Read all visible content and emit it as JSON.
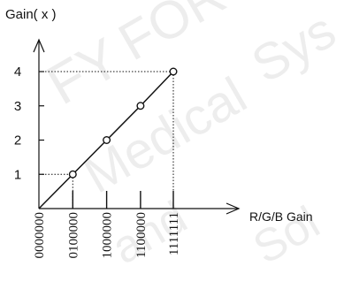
{
  "chart_data": {
    "type": "line",
    "title": "",
    "ylabel": "Gain( x )",
    "xlabel": "R/G/B Gain",
    "x_tick_labels": [
      "0000000",
      "0100000",
      "1000000",
      "1100000",
      "1111111"
    ],
    "y_ticks": [
      1,
      2,
      3,
      4
    ],
    "xlim": [
      0,
      127
    ],
    "ylim": [
      0,
      4
    ],
    "series": [
      {
        "values": [
          [
            0,
            0
          ],
          [
            32,
            1
          ],
          [
            64,
            2
          ],
          [
            96,
            3
          ],
          [
            127,
            4
          ]
        ]
      }
    ],
    "markers": [
      [
        32,
        1
      ],
      [
        64,
        2
      ],
      [
        96,
        3
      ],
      [
        127,
        4
      ]
    ],
    "guides": [
      [
        32,
        1
      ],
      [
        127,
        4
      ]
    ],
    "grid": false,
    "colors": {
      "line": "#111111",
      "marker_fill": "#ffffff",
      "guide": "#111111"
    }
  },
  "watermark": {
    "lines": [
      "FY",
      "FOR",
      "Sys",
      "Medical",
      "and",
      "Sol"
    ]
  }
}
